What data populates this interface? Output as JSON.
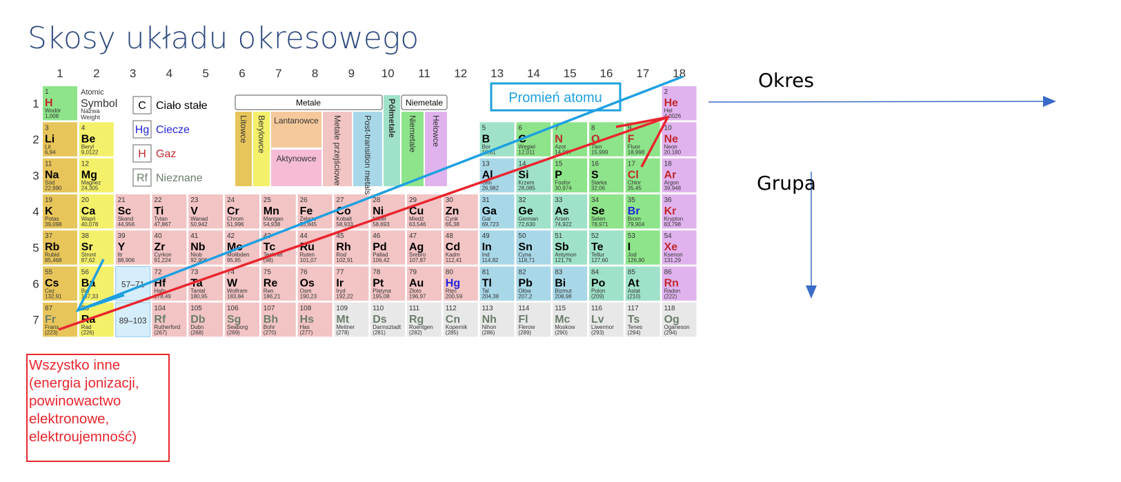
{
  "title": "Skosy układu okresowego",
  "group_numbers": [
    "1",
    "2",
    "3",
    "4",
    "5",
    "6",
    "7",
    "8",
    "9",
    "10",
    "11",
    "12",
    "13",
    "14",
    "15",
    "16",
    "17",
    "18"
  ],
  "period_numbers": [
    "1",
    "2",
    "3",
    "4",
    "5",
    "6",
    "7"
  ],
  "legend": {
    "atomic": [
      "Atomic",
      "Symbol",
      "Nazwa",
      "Weight"
    ],
    "states": [
      {
        "sym": "C",
        "label": "Ciało stałe",
        "color": "#000000"
      },
      {
        "sym": "Hg",
        "label": "Ciecze",
        "color": "#2323d9"
      },
      {
        "sym": "H",
        "label": "Gaz",
        "color": "#c0272d"
      },
      {
        "sym": "Rf",
        "label": "Nieznane",
        "color": "#6b7d6b"
      }
    ]
  },
  "categories": {
    "metale": "Metale",
    "niemetale": "Niemetale",
    "polmetale": "Półmetale",
    "litowce": "Litowce",
    "berylowce": "Berylowce",
    "lantanowce": "Lantanowce",
    "aktynowce": "Aktynowce",
    "metale_przejsciowe": "Metale przejściowe",
    "post_transition": "Post-transition metals",
    "niemetale_v": "Niemetale",
    "helowce": "Helowce"
  },
  "colors": {
    "alkali": "#e8c55a",
    "alkaline": "#f4f06a",
    "transition": "#f2c4c4",
    "post": "#a8d8e8",
    "metalloid": "#9fe2c9",
    "nonmetal": "#8ee48a",
    "noble": "#e0b3ee",
    "lanthanide": "#f5c99b",
    "actinide": "#f6bcd6",
    "unknown": "#e8e8e8",
    "blue_arrow": "#1ea0e0",
    "red_arrow": "#e8262e",
    "axis_arrow": "#3a6bc9"
  },
  "placeholders": [
    "57–71",
    "89–103"
  ],
  "elements": [
    {
      "n": "1",
      "s": "H",
      "name": "Wodór",
      "w": "1,008",
      "p": 1,
      "g": 1,
      "c": "nonmetal",
      "st": "gas"
    },
    {
      "n": "2",
      "s": "He",
      "name": "Hel",
      "w": "4,0026",
      "p": 1,
      "g": 18,
      "c": "noble",
      "st": "gas"
    },
    {
      "n": "3",
      "s": "Li",
      "name": "Lit",
      "w": "6,94",
      "p": 2,
      "g": 1,
      "c": "alkali",
      "st": "solid"
    },
    {
      "n": "4",
      "s": "Be",
      "name": "Beryl",
      "w": "9,0122",
      "p": 2,
      "g": 2,
      "c": "alkaline",
      "st": "solid"
    },
    {
      "n": "5",
      "s": "B",
      "name": "Bor",
      "w": "10,81",
      "p": 2,
      "g": 13,
      "c": "metalloid",
      "st": "solid"
    },
    {
      "n": "6",
      "s": "C",
      "name": "Węgiel",
      "w": "12,011",
      "p": 2,
      "g": 14,
      "c": "nonmetal",
      "st": "solid"
    },
    {
      "n": "7",
      "s": "N",
      "name": "Azot",
      "w": "14,007",
      "p": 2,
      "g": 15,
      "c": "nonmetal",
      "st": "gas"
    },
    {
      "n": "8",
      "s": "O",
      "name": "Tlen",
      "w": "15,999",
      "p": 2,
      "g": 16,
      "c": "nonmetal",
      "st": "gas"
    },
    {
      "n": "9",
      "s": "F",
      "name": "Fluor",
      "w": "18,998",
      "p": 2,
      "g": 17,
      "c": "nonmetal",
      "st": "gas"
    },
    {
      "n": "10",
      "s": "Ne",
      "name": "Neon",
      "w": "20,180",
      "p": 2,
      "g": 18,
      "c": "noble",
      "st": "gas"
    },
    {
      "n": "11",
      "s": "Na",
      "name": "Sód",
      "w": "22,990",
      "p": 3,
      "g": 1,
      "c": "alkali",
      "st": "solid"
    },
    {
      "n": "12",
      "s": "Mg",
      "name": "Magnez",
      "w": "24,305",
      "p": 3,
      "g": 2,
      "c": "alkaline",
      "st": "solid"
    },
    {
      "n": "13",
      "s": "Al",
      "name": "Glin",
      "w": "26,982",
      "p": 3,
      "g": 13,
      "c": "post",
      "st": "solid"
    },
    {
      "n": "14",
      "s": "Si",
      "name": "Krzem",
      "w": "28,085",
      "p": 3,
      "g": 14,
      "c": "metalloid",
      "st": "solid"
    },
    {
      "n": "15",
      "s": "P",
      "name": "Fosfor",
      "w": "30,974",
      "p": 3,
      "g": 15,
      "c": "nonmetal",
      "st": "solid"
    },
    {
      "n": "16",
      "s": "S",
      "name": "Siarka",
      "w": "32,06",
      "p": 3,
      "g": 16,
      "c": "nonmetal",
      "st": "solid"
    },
    {
      "n": "17",
      "s": "Cl",
      "name": "Chlor",
      "w": "35,45",
      "p": 3,
      "g": 17,
      "c": "nonmetal",
      "st": "gas"
    },
    {
      "n": "18",
      "s": "Ar",
      "name": "Argon",
      "w": "39,948",
      "p": 3,
      "g": 18,
      "c": "noble",
      "st": "gas"
    },
    {
      "n": "19",
      "s": "K",
      "name": "Potas",
      "w": "39,098",
      "p": 4,
      "g": 1,
      "c": "alkali",
      "st": "solid"
    },
    {
      "n": "20",
      "s": "Ca",
      "name": "Wapń",
      "w": "40,078",
      "p": 4,
      "g": 2,
      "c": "alkaline",
      "st": "solid"
    },
    {
      "n": "21",
      "s": "Sc",
      "name": "Skand",
      "w": "44,956",
      "p": 4,
      "g": 3,
      "c": "transition",
      "st": "solid"
    },
    {
      "n": "22",
      "s": "Ti",
      "name": "Tytan",
      "w": "47,867",
      "p": 4,
      "g": 4,
      "c": "transition",
      "st": "solid"
    },
    {
      "n": "23",
      "s": "V",
      "name": "Wanad",
      "w": "50,942",
      "p": 4,
      "g": 5,
      "c": "transition",
      "st": "solid"
    },
    {
      "n": "24",
      "s": "Cr",
      "name": "Chrom",
      "w": "51,996",
      "p": 4,
      "g": 6,
      "c": "transition",
      "st": "solid"
    },
    {
      "n": "25",
      "s": "Mn",
      "name": "Mangan",
      "w": "54,938",
      "p": 4,
      "g": 7,
      "c": "transition",
      "st": "solid"
    },
    {
      "n": "26",
      "s": "Fe",
      "name": "Żelazo",
      "w": "55,845",
      "p": 4,
      "g": 8,
      "c": "transition",
      "st": "solid"
    },
    {
      "n": "27",
      "s": "Co",
      "name": "Kobalt",
      "w": "58,933",
      "p": 4,
      "g": 9,
      "c": "transition",
      "st": "solid"
    },
    {
      "n": "28",
      "s": "Ni",
      "name": "Nikiel",
      "w": "58,693",
      "p": 4,
      "g": 10,
      "c": "transition",
      "st": "solid"
    },
    {
      "n": "29",
      "s": "Cu",
      "name": "Miedź",
      "w": "63,546",
      "p": 4,
      "g": 11,
      "c": "transition",
      "st": "solid"
    },
    {
      "n": "30",
      "s": "Zn",
      "name": "Cynk",
      "w": "65,38",
      "p": 4,
      "g": 12,
      "c": "transition",
      "st": "solid"
    },
    {
      "n": "31",
      "s": "Ga",
      "name": "Gal",
      "w": "69,723",
      "p": 4,
      "g": 13,
      "c": "post",
      "st": "solid"
    },
    {
      "n": "32",
      "s": "Ge",
      "name": "German",
      "w": "72,630",
      "p": 4,
      "g": 14,
      "c": "metalloid",
      "st": "solid"
    },
    {
      "n": "33",
      "s": "As",
      "name": "Arsen",
      "w": "74,922",
      "p": 4,
      "g": 15,
      "c": "metalloid",
      "st": "solid"
    },
    {
      "n": "34",
      "s": "Se",
      "name": "Selen",
      "w": "78,971",
      "p": 4,
      "g": 16,
      "c": "nonmetal",
      "st": "solid"
    },
    {
      "n": "35",
      "s": "Br",
      "name": "Brom",
      "w": "79,904",
      "p": 4,
      "g": 17,
      "c": "nonmetal",
      "st": "liquid"
    },
    {
      "n": "36",
      "s": "Kr",
      "name": "Krypton",
      "w": "83,798",
      "p": 4,
      "g": 18,
      "c": "noble",
      "st": "gas"
    },
    {
      "n": "37",
      "s": "Rb",
      "name": "Rubid",
      "w": "85,468",
      "p": 5,
      "g": 1,
      "c": "alkali",
      "st": "solid"
    },
    {
      "n": "38",
      "s": "Sr",
      "name": "Stront",
      "w": "87,62",
      "p": 5,
      "g": 2,
      "c": "alkaline",
      "st": "solid"
    },
    {
      "n": "39",
      "s": "Y",
      "name": "Itr",
      "w": "88,906",
      "p": 5,
      "g": 3,
      "c": "transition",
      "st": "solid"
    },
    {
      "n": "40",
      "s": "Zr",
      "name": "Cyrkon",
      "w": "91,224",
      "p": 5,
      "g": 4,
      "c": "transition",
      "st": "solid"
    },
    {
      "n": "41",
      "s": "Nb",
      "name": "Niob",
      "w": "92,906",
      "p": 5,
      "g": 5,
      "c": "transition",
      "st": "solid"
    },
    {
      "n": "42",
      "s": "Mo",
      "name": "Molibden",
      "w": "95,95",
      "p": 5,
      "g": 6,
      "c": "transition",
      "st": "solid"
    },
    {
      "n": "43",
      "s": "Tc",
      "name": "Technet",
      "w": "(98)",
      "p": 5,
      "g": 7,
      "c": "transition",
      "st": "solid"
    },
    {
      "n": "44",
      "s": "Ru",
      "name": "Ruten",
      "w": "101,07",
      "p": 5,
      "g": 8,
      "c": "transition",
      "st": "solid"
    },
    {
      "n": "45",
      "s": "Rh",
      "name": "Rod",
      "w": "102,91",
      "p": 5,
      "g": 9,
      "c": "transition",
      "st": "solid"
    },
    {
      "n": "46",
      "s": "Pd",
      "name": "Pallad",
      "w": "106,42",
      "p": 5,
      "g": 10,
      "c": "transition",
      "st": "solid"
    },
    {
      "n": "47",
      "s": "Ag",
      "name": "Srebro",
      "w": "107,87",
      "p": 5,
      "g": 11,
      "c": "transition",
      "st": "solid"
    },
    {
      "n": "48",
      "s": "Cd",
      "name": "Kadm",
      "w": "112,41",
      "p": 5,
      "g": 12,
      "c": "transition",
      "st": "solid"
    },
    {
      "n": "49",
      "s": "In",
      "name": "Ind",
      "w": "114,82",
      "p": 5,
      "g": 13,
      "c": "post",
      "st": "solid"
    },
    {
      "n": "50",
      "s": "Sn",
      "name": "Cyna",
      "w": "118,71",
      "p": 5,
      "g": 14,
      "c": "post",
      "st": "solid"
    },
    {
      "n": "51",
      "s": "Sb",
      "name": "Antymon",
      "w": "121,76",
      "p": 5,
      "g": 15,
      "c": "metalloid",
      "st": "solid"
    },
    {
      "n": "52",
      "s": "Te",
      "name": "Tellur",
      "w": "127,60",
      "p": 5,
      "g": 16,
      "c": "metalloid",
      "st": "solid"
    },
    {
      "n": "53",
      "s": "I",
      "name": "Jod",
      "w": "126,90",
      "p": 5,
      "g": 17,
      "c": "nonmetal",
      "st": "solid"
    },
    {
      "n": "54",
      "s": "Xe",
      "name": "Ksenon",
      "w": "131,29",
      "p": 5,
      "g": 18,
      "c": "noble",
      "st": "gas"
    },
    {
      "n": "55",
      "s": "Cs",
      "name": "Cez",
      "w": "132,91",
      "p": 6,
      "g": 1,
      "c": "alkali",
      "st": "solid"
    },
    {
      "n": "56",
      "s": "Ba",
      "name": "Bar",
      "w": "137,33",
      "p": 6,
      "g": 2,
      "c": "alkaline",
      "st": "solid"
    },
    {
      "n": "72",
      "s": "Hf",
      "name": "Hafn",
      "w": "178,49",
      "p": 6,
      "g": 4,
      "c": "transition",
      "st": "solid"
    },
    {
      "n": "73",
      "s": "Ta",
      "name": "Tantal",
      "w": "180,95",
      "p": 6,
      "g": 5,
      "c": "transition",
      "st": "solid"
    },
    {
      "n": "74",
      "s": "W",
      "name": "Wolfram",
      "w": "183,84",
      "p": 6,
      "g": 6,
      "c": "transition",
      "st": "solid"
    },
    {
      "n": "75",
      "s": "Re",
      "name": "Ren",
      "w": "186,21",
      "p": 6,
      "g": 7,
      "c": "transition",
      "st": "solid"
    },
    {
      "n": "76",
      "s": "Os",
      "name": "Osm",
      "w": "190,23",
      "p": 6,
      "g": 8,
      "c": "transition",
      "st": "solid"
    },
    {
      "n": "77",
      "s": "Ir",
      "name": "Iryd",
      "w": "192,22",
      "p": 6,
      "g": 9,
      "c": "transition",
      "st": "solid"
    },
    {
      "n": "78",
      "s": "Pt",
      "name": "Platyna",
      "w": "195,08",
      "p": 6,
      "g": 10,
      "c": "transition",
      "st": "solid"
    },
    {
      "n": "79",
      "s": "Au",
      "name": "Złoto",
      "w": "196,97",
      "p": 6,
      "g": 11,
      "c": "transition",
      "st": "solid"
    },
    {
      "n": "80",
      "s": "Hg",
      "name": "Rtęć",
      "w": "200,59",
      "p": 6,
      "g": 12,
      "c": "transition",
      "st": "liquid"
    },
    {
      "n": "81",
      "s": "Tl",
      "name": "Tal",
      "w": "204,38",
      "p": 6,
      "g": 13,
      "c": "post",
      "st": "solid"
    },
    {
      "n": "82",
      "s": "Pb",
      "name": "Ołów",
      "w": "207,2",
      "p": 6,
      "g": 14,
      "c": "post",
      "st": "solid"
    },
    {
      "n": "83",
      "s": "Bi",
      "name": "Bizmut",
      "w": "208,98",
      "p": 6,
      "g": 15,
      "c": "post",
      "st": "solid"
    },
    {
      "n": "84",
      "s": "Po",
      "name": "Polon",
      "w": "(209)",
      "p": 6,
      "g": 16,
      "c": "metalloid",
      "st": "solid"
    },
    {
      "n": "85",
      "s": "At",
      "name": "Astat",
      "w": "(210)",
      "p": 6,
      "g": 17,
      "c": "metalloid",
      "st": "solid"
    },
    {
      "n": "86",
      "s": "Rn",
      "name": "Radon",
      "w": "(222)",
      "p": 6,
      "g": 18,
      "c": "noble",
      "st": "gas"
    },
    {
      "n": "87",
      "s": "Fr",
      "name": "Frans",
      "w": "(223)",
      "p": 7,
      "g": 1,
      "c": "alkali",
      "st": "unknown"
    },
    {
      "n": "88",
      "s": "Ra",
      "name": "Rad",
      "w": "(226)",
      "p": 7,
      "g": 2,
      "c": "alkaline",
      "st": "solid"
    },
    {
      "n": "104",
      "s": "Rf",
      "name": "Rutherford",
      "w": "(267)",
      "p": 7,
      "g": 4,
      "c": "transition",
      "st": "unknown"
    },
    {
      "n": "105",
      "s": "Db",
      "name": "Dubn",
      "w": "(268)",
      "p": 7,
      "g": 5,
      "c": "transition",
      "st": "unknown"
    },
    {
      "n": "106",
      "s": "Sg",
      "name": "Seaborg",
      "w": "(269)",
      "p": 7,
      "g": 6,
      "c": "transition",
      "st": "unknown"
    },
    {
      "n": "107",
      "s": "Bh",
      "name": "Bohr",
      "w": "(270)",
      "p": 7,
      "g": 7,
      "c": "transition",
      "st": "unknown"
    },
    {
      "n": "108",
      "s": "Hs",
      "name": "Has",
      "w": "(277)",
      "p": 7,
      "g": 8,
      "c": "transition",
      "st": "unknown"
    },
    {
      "n": "109",
      "s": "Mt",
      "name": "Meitner",
      "w": "(278)",
      "p": 7,
      "g": 9,
      "c": "unknown",
      "st": "unknown"
    },
    {
      "n": "110",
      "s": "Ds",
      "name": "Darmsztadt",
      "w": "(281)",
      "p": 7,
      "g": 10,
      "c": "unknown",
      "st": "unknown"
    },
    {
      "n": "111",
      "s": "Rg",
      "name": "Roentgen",
      "w": "(282)",
      "p": 7,
      "g": 11,
      "c": "unknown",
      "st": "unknown"
    },
    {
      "n": "112",
      "s": "Cn",
      "name": "Kopernik",
      "w": "(285)",
      "p": 7,
      "g": 12,
      "c": "unknown",
      "st": "unknown"
    },
    {
      "n": "113",
      "s": "Nh",
      "name": "Nihon",
      "w": "(286)",
      "p": 7,
      "g": 13,
      "c": "unknown",
      "st": "unknown"
    },
    {
      "n": "114",
      "s": "Fl",
      "name": "Flerow",
      "w": "(289)",
      "p": 7,
      "g": 14,
      "c": "unknown",
      "st": "unknown"
    },
    {
      "n": "115",
      "s": "Mc",
      "name": "Moskow",
      "w": "(290)",
      "p": 7,
      "g": 15,
      "c": "unknown",
      "st": "unknown"
    },
    {
      "n": "116",
      "s": "Lv",
      "name": "Liwermor",
      "w": "(293)",
      "p": 7,
      "g": 16,
      "c": "unknown",
      "st": "unknown"
    },
    {
      "n": "117",
      "s": "Ts",
      "name": "Tenes",
      "w": "(294)",
      "p": 7,
      "g": 17,
      "c": "unknown",
      "st": "unknown"
    },
    {
      "n": "118",
      "s": "Og",
      "name": "Oganeson",
      "w": "(294)",
      "p": 7,
      "g": 18,
      "c": "unknown",
      "st": "unknown"
    }
  ],
  "annotations": {
    "promien": "Promień atomu",
    "okres": "Okres",
    "grupa": "Grupa",
    "wszystko_inne": [
      "Wszystko inne",
      "(energia jonizacji,",
      "powinowactwo",
      "elektronowe,",
      "elektroujemność)"
    ]
  }
}
